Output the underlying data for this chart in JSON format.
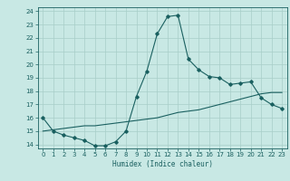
{
  "title": "",
  "xlabel": "Humidex (Indice chaleur)",
  "ylabel": "",
  "x_ticks": [
    0,
    1,
    2,
    3,
    4,
    5,
    6,
    7,
    8,
    9,
    10,
    11,
    12,
    13,
    14,
    15,
    16,
    17,
    18,
    19,
    20,
    21,
    22,
    23
  ],
  "y_ticks": [
    14,
    15,
    16,
    17,
    18,
    19,
    20,
    21,
    22,
    23,
    24
  ],
  "xlim": [
    -0.5,
    23.5
  ],
  "ylim": [
    13.7,
    24.3
  ],
  "bg_color": "#c8e8e4",
  "grid_color": "#a8cec8",
  "line_color": "#1a6060",
  "line1_x": [
    0,
    1,
    2,
    3,
    4,
    5,
    6,
    7,
    8,
    9,
    10,
    11,
    12,
    13,
    14,
    15,
    16,
    17,
    18,
    19,
    20,
    21,
    22,
    23
  ],
  "line1_y": [
    16.0,
    15.0,
    14.7,
    14.5,
    14.3,
    13.9,
    13.9,
    14.2,
    15.0,
    17.6,
    19.5,
    22.3,
    23.6,
    23.7,
    20.4,
    19.6,
    19.1,
    19.0,
    18.5,
    18.6,
    18.7,
    17.5,
    17.0,
    16.7
  ],
  "line2_x": [
    0,
    1,
    2,
    3,
    4,
    5,
    6,
    7,
    8,
    9,
    10,
    11,
    12,
    13,
    14,
    15,
    16,
    17,
    18,
    19,
    20,
    21,
    22,
    23
  ],
  "line2_y": [
    15.0,
    15.1,
    15.2,
    15.3,
    15.4,
    15.4,
    15.5,
    15.6,
    15.7,
    15.8,
    15.9,
    16.0,
    16.2,
    16.4,
    16.5,
    16.6,
    16.8,
    17.0,
    17.2,
    17.4,
    17.6,
    17.8,
    17.9,
    17.9
  ]
}
